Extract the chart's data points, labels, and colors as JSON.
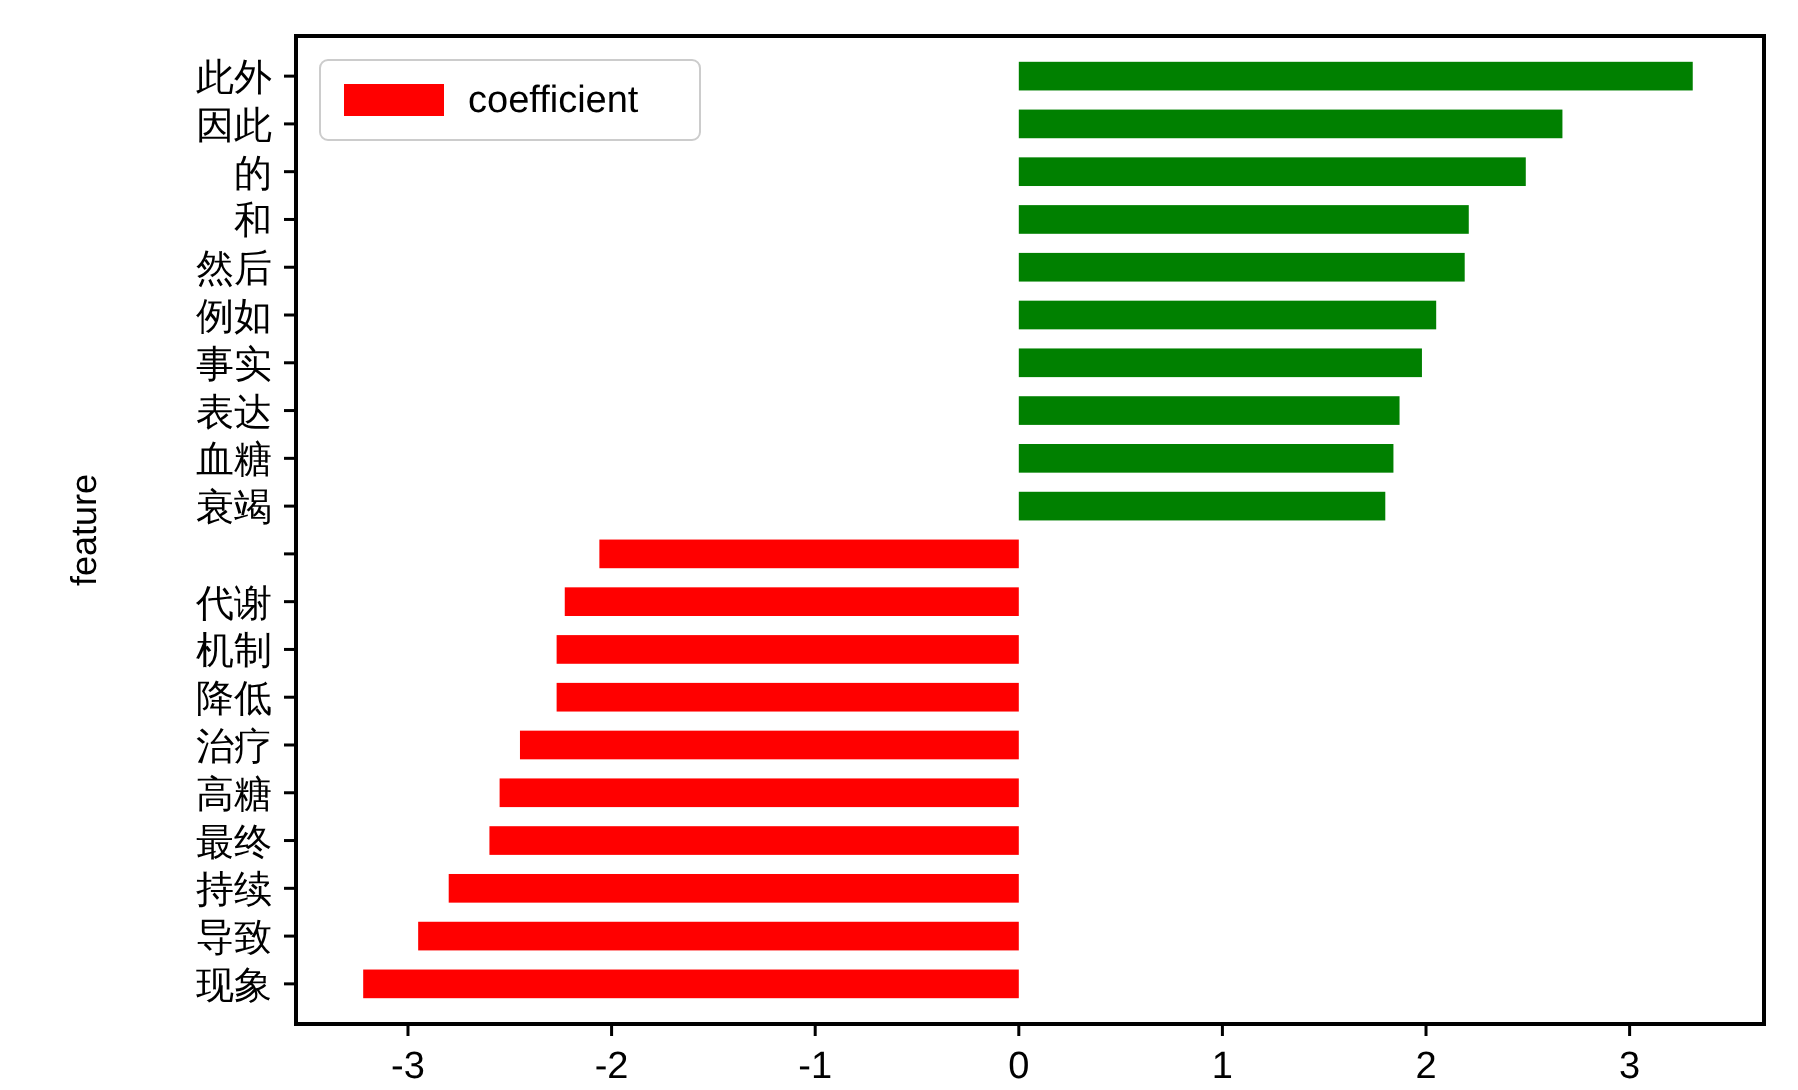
{
  "chart_data": {
    "type": "bar",
    "orientation": "horizontal",
    "ylabel": "feature",
    "legend": "top left",
    "categories": [
      "此外",
      "因此",
      "的",
      "和",
      "然后",
      "例如",
      "事实",
      "表达",
      "血糖",
      "衰竭",
      null,
      "代谢",
      "机制",
      "降低",
      "治疗",
      "高糖",
      "最终",
      "持续",
      "导致",
      "现象"
    ],
    "series": [
      {
        "name": "coefficient",
        "color": "#ff0000",
        "colors": [
          "#008000",
          "#008000",
          "#008000",
          "#008000",
          "#008000",
          "#008000",
          "#008000",
          "#008000",
          "#008000",
          "#008000",
          "#ff0000",
          "#ff0000",
          "#ff0000",
          "#ff0000",
          "#ff0000",
          "#ff0000",
          "#ff0000",
          "#ff0000",
          "#ff0000",
          "#ff0000"
        ],
        "values": [
          3.31,
          2.67,
          2.49,
          2.21,
          2.19,
          2.05,
          1.98,
          1.87,
          1.84,
          1.8,
          -2.06,
          -2.23,
          -2.27,
          -2.27,
          -2.45,
          -2.55,
          -2.6,
          -2.8,
          -2.95,
          -3.22
        ]
      }
    ],
    "xlim": [
      -3.55,
      3.66
    ],
    "xticks": [
      -3,
      -2,
      -1,
      0,
      1,
      2,
      3
    ]
  }
}
